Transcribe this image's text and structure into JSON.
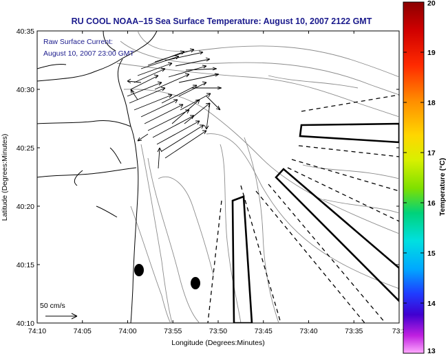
{
  "title": "RU COOL  NOAA–15  Sea Surface Temperature:  August 10, 2007 2122 GMT",
  "annotation": {
    "line1": "Raw Surface Current:",
    "line2": "August 10, 2007 23:00 GMT"
  },
  "scale_label": "50 cm/s",
  "xlabel": "Longitude (Degrees:Minutes)",
  "ylabel": "Latitude (Degrees:Minutes)",
  "x_ticks": [
    "74:10",
    "74:05",
    "74:00",
    "73:55",
    "73:50",
    "73:45",
    "73:40",
    "73:35",
    "73:3"
  ],
  "y_ticks": [
    "40:35",
    "40:30",
    "40:25",
    "40:20",
    "40:15",
    "40:10"
  ],
  "colorbar": {
    "label": "Temperature (°C)",
    "ticks": [
      "20",
      "19",
      "18",
      "17",
      "16",
      "15",
      "14",
      "13"
    ],
    "min": 13,
    "max": 20
  },
  "colors": {
    "title": "#1a1a8c",
    "contour": "#888888",
    "coast": "#000000"
  }
}
